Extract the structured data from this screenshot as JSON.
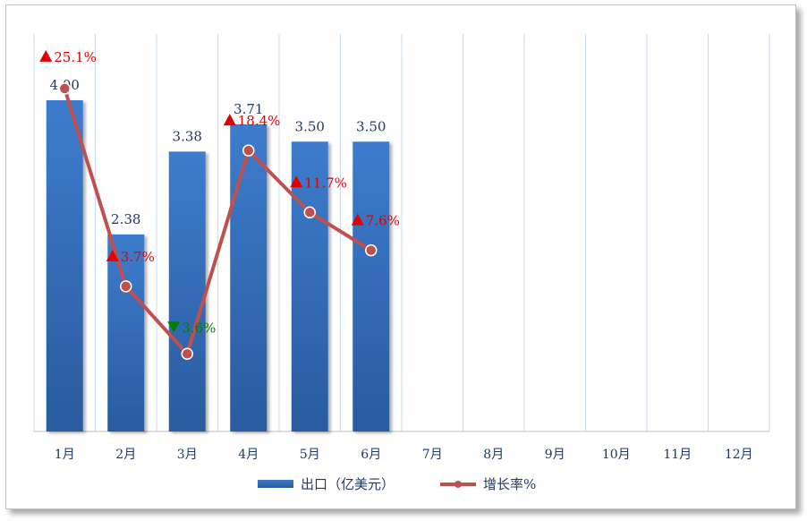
{
  "chart_data": {
    "type": "bar+line",
    "categories": [
      "1月",
      "2月",
      "3月",
      "4月",
      "5月",
      "6月",
      "7月",
      "8月",
      "9月",
      "10月",
      "11月",
      "12月"
    ],
    "series": [
      {
        "name": "出口（亿美元）",
        "type": "bar",
        "values": [
          4.0,
          2.38,
          3.38,
          3.71,
          3.5,
          3.5,
          null,
          null,
          null,
          null,
          null,
          null
        ],
        "labels": [
          "4.00",
          "2.38",
          "3.38",
          "3.71",
          "3.50",
          "3.50"
        ],
        "color": "#2e64b0"
      },
      {
        "name": "增长率%",
        "type": "line",
        "values": [
          25.1,
          3.7,
          -3.6,
          18.4,
          11.7,
          7.6,
          null,
          null,
          null,
          null,
          null,
          null
        ],
        "labels": [
          "25.1%",
          "3.7%",
          "3.6%",
          "18.4%",
          "11.7%",
          "7.6%"
        ],
        "directions": [
          "up",
          "up",
          "down",
          "up",
          "up",
          "up"
        ],
        "color": "#c0504d"
      }
    ],
    "bar_axis_range": [
      0,
      4.8
    ],
    "line_axis_range": [
      -12,
      31
    ],
    "grid": "vertical",
    "legend_position": "bottom",
    "colors": {
      "up": "#e00000",
      "down": "#008000",
      "grid": "#c9d9ef",
      "tick_text": "#1f3864"
    }
  }
}
